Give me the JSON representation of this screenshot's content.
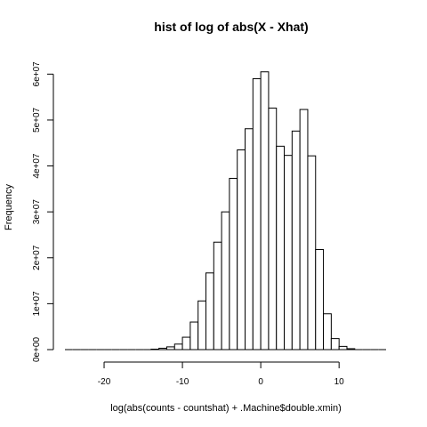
{
  "chart_data": {
    "type": "bar",
    "title": "hist of log of abs(X - Xhat)",
    "xlabel": "log(abs(counts - countshat) + .Machine$double.xmin)",
    "ylabel": "Frequency",
    "xlim": [
      -25,
      16
    ],
    "ylim": [
      0,
      62000000
    ],
    "x_ticks": [
      -20,
      -10,
      0,
      10
    ],
    "x_tick_labels": [
      "-20",
      "-10",
      "0",
      "10"
    ],
    "y_ticks": [
      0,
      10000000,
      20000000,
      30000000,
      40000000,
      50000000,
      60000000
    ],
    "y_tick_labels": [
      "0e+00",
      "1e+07",
      "2e+07",
      "3e+07",
      "4e+07",
      "5e+07",
      "6e+07"
    ],
    "bin_width": 1,
    "bins": [
      {
        "x0": -25,
        "x1": -24,
        "value": 0
      },
      {
        "x0": -24,
        "x1": -23,
        "value": 0
      },
      {
        "x0": -23,
        "x1": -22,
        "value": 0
      },
      {
        "x0": -22,
        "x1": -21,
        "value": 0
      },
      {
        "x0": -21,
        "x1": -20,
        "value": 0
      },
      {
        "x0": -20,
        "x1": -19,
        "value": 0
      },
      {
        "x0": -19,
        "x1": -18,
        "value": 0
      },
      {
        "x0": -18,
        "x1": -17,
        "value": 0
      },
      {
        "x0": -17,
        "x1": -16,
        "value": 0
      },
      {
        "x0": -16,
        "x1": -15,
        "value": 0
      },
      {
        "x0": -15,
        "x1": -14,
        "value": 0
      },
      {
        "x0": -14,
        "x1": -13,
        "value": 100000
      },
      {
        "x0": -13,
        "x1": -12,
        "value": 300000
      },
      {
        "x0": -12,
        "x1": -11,
        "value": 600000
      },
      {
        "x0": -11,
        "x1": -10,
        "value": 1200000
      },
      {
        "x0": -10,
        "x1": -9,
        "value": 2700000
      },
      {
        "x0": -9,
        "x1": -8,
        "value": 6000000
      },
      {
        "x0": -8,
        "x1": -7,
        "value": 10600000
      },
      {
        "x0": -7,
        "x1": -6,
        "value": 16700000
      },
      {
        "x0": -6,
        "x1": -5,
        "value": 23400000
      },
      {
        "x0": -5,
        "x1": -4,
        "value": 30000000
      },
      {
        "x0": -4,
        "x1": -3,
        "value": 37300000
      },
      {
        "x0": -3,
        "x1": -2,
        "value": 43500000
      },
      {
        "x0": -2,
        "x1": -1,
        "value": 48100000
      },
      {
        "x0": -1,
        "x1": 0,
        "value": 59000000
      },
      {
        "x0": 0,
        "x1": 1,
        "value": 60500000
      },
      {
        "x0": 1,
        "x1": 2,
        "value": 52600000
      },
      {
        "x0": 2,
        "x1": 3,
        "value": 44300000
      },
      {
        "x0": 3,
        "x1": 4,
        "value": 42300000
      },
      {
        "x0": 4,
        "x1": 5,
        "value": 47600000
      },
      {
        "x0": 5,
        "x1": 6,
        "value": 52300000
      },
      {
        "x0": 6,
        "x1": 7,
        "value": 42200000
      },
      {
        "x0": 7,
        "x1": 8,
        "value": 21800000
      },
      {
        "x0": 8,
        "x1": 9,
        "value": 7800000
      },
      {
        "x0": 9,
        "x1": 10,
        "value": 2400000
      },
      {
        "x0": 10,
        "x1": 11,
        "value": 700000
      },
      {
        "x0": 11,
        "x1": 12,
        "value": 200000
      },
      {
        "x0": 12,
        "x1": 13,
        "value": 0
      },
      {
        "x0": 13,
        "x1": 14,
        "value": 0
      },
      {
        "x0": 14,
        "x1": 15,
        "value": 0
      },
      {
        "x0": 15,
        "x1": 16,
        "value": 0
      }
    ]
  }
}
